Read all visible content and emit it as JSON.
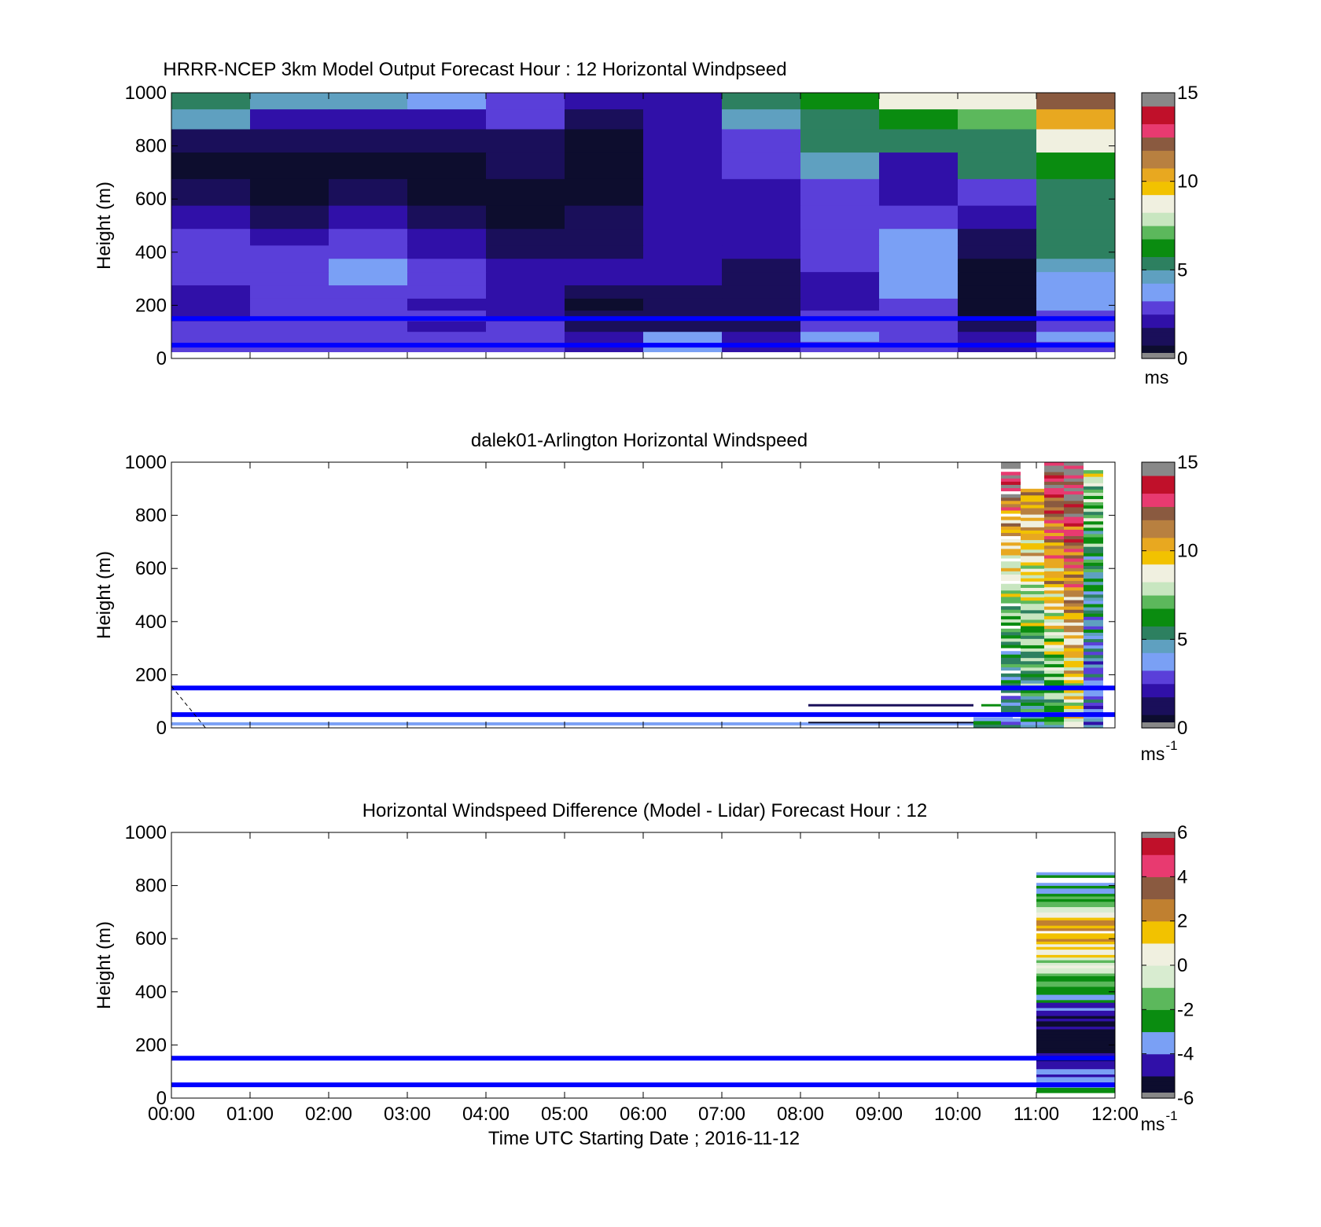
{
  "figure": {
    "xlabel": "Time UTC  Starting Date ; 2016-11-12",
    "x_ticks": [
      "00:00",
      "01:00",
      "02:00",
      "03:00",
      "04:00",
      "05:00",
      "06:00",
      "07:00",
      "08:00",
      "09:00",
      "10:00",
      "11:00",
      "12:00"
    ]
  },
  "colors": {
    "guide_lines": "#0000ff",
    "windspeed_colormap": [
      "#0d0d2e",
      "#1a0f5a",
      "#3010a8",
      "#5a3fd9",
      "#7aa0f5",
      "#5fa0c0",
      "#2d8060",
      "#0a8c10",
      "#5cb85c",
      "#c8e6c0",
      "#f0f0e0",
      "#f2c200",
      "#e8a820",
      "#b88040",
      "#8a5a40",
      "#e83a70",
      "#c0102a",
      "#888888"
    ],
    "difference_colormap": [
      "#0d0d2e",
      "#3010a8",
      "#7aa0f5",
      "#0a8c10",
      "#5cb85c",
      "#d8ecd0",
      "#f0f0e0",
      "#f2c200",
      "#c08030",
      "#8a5a40",
      "#e83a70",
      "#c0102a"
    ]
  },
  "chart_data": [
    {
      "type": "heatmap",
      "title": "HRRR-NCEP 3km Model Output   Forecast Hour : 12 Horizontal Windpseed",
      "xlabel": "",
      "ylabel": "Height (m)",
      "xlim": [
        0,
        12
      ],
      "ylim": [
        0,
        1000
      ],
      "y_ticks": [
        "0",
        "200",
        "400",
        "600",
        "800",
        "1000"
      ],
      "colorbar": {
        "min": 0,
        "max": 15,
        "ticks": [
          "0",
          "5",
          "10",
          "15"
        ],
        "unit": "ms",
        "unit_sup": ""
      },
      "guide_lines_height_m": [
        150,
        50
      ],
      "x": [
        0,
        1,
        2,
        3,
        4,
        5,
        6,
        7,
        8,
        9,
        10,
        11
      ],
      "heights_m": [
        975,
        900,
        825,
        725,
        625,
        525,
        450,
        400,
        350,
        300,
        250,
        200,
        160,
        120,
        80,
        45
      ],
      "values": [
        [
          5.5,
          4.5,
          4.2,
          3.8,
          3.2,
          2.3,
          2.0,
          5.2,
          6.5,
          9.0,
          9.0,
          12.0
        ],
        [
          4.5,
          2.0,
          2.2,
          2.2,
          2.5,
          1.2,
          2.3,
          4.5,
          5.3,
          6.0,
          7.0,
          10.0
        ],
        [
          1.5,
          1.0,
          1.0,
          1.0,
          1.5,
          0.3,
          2.0,
          2.5,
          5.0,
          5.2,
          5.8,
          9.0
        ],
        [
          0.2,
          0.1,
          0.3,
          0.3,
          1.0,
          0.3,
          2.0,
          2.5,
          4.2,
          1.8,
          5.4,
          6.5
        ],
        [
          1.2,
          0.8,
          1.0,
          0.6,
          0.3,
          0.8,
          2.0,
          2.0,
          2.6,
          1.8,
          3.0,
          5.8
        ],
        [
          2.2,
          1.5,
          2.0,
          1.5,
          0.6,
          1.3,
          2.0,
          2.2,
          2.8,
          2.6,
          2.0,
          5.2
        ],
        [
          2.5,
          2.3,
          2.8,
          1.8,
          1.0,
          1.4,
          2.1,
          2.0,
          2.9,
          3.6,
          1.0,
          5.0
        ],
        [
          3.0,
          2.6,
          3.2,
          2.4,
          1.6,
          1.5,
          1.8,
          1.8,
          2.8,
          3.9,
          1.3,
          5.0
        ],
        [
          3.0,
          3.0,
          3.6,
          3.0,
          2.1,
          1.7,
          1.8,
          1.6,
          2.6,
          3.9,
          0.8,
          4.5
        ],
        [
          2.6,
          3.1,
          3.7,
          3.2,
          2.4,
          1.9,
          1.8,
          1.5,
          2.3,
          3.9,
          0.4,
          3.9
        ],
        [
          2.2,
          3.0,
          3.2,
          2.7,
          2.0,
          1.5,
          1.6,
          1.3,
          2.1,
          3.7,
          0.3,
          3.7
        ],
        [
          2.0,
          2.6,
          2.9,
          2.4,
          1.7,
          0.8,
          1.4,
          1.2,
          2.2,
          3.3,
          0.3,
          3.9
        ],
        [
          2.4,
          2.7,
          2.9,
          2.6,
          2.2,
          1.2,
          1.5,
          1.2,
          2.5,
          3.1,
          0.7,
          3.1
        ],
        [
          2.6,
          2.7,
          3.0,
          2.3,
          2.7,
          1.6,
          1.6,
          1.3,
          2.8,
          3.0,
          1.2,
          3.0
        ],
        [
          2.8,
          3.0,
          3.3,
          2.6,
          3.1,
          2.0,
          3.6,
          1.7,
          3.6,
          3.3,
          1.8,
          3.4
        ],
        [
          2.9,
          3.2,
          3.3,
          2.8,
          3.2,
          2.3,
          3.4,
          2.3,
          3.3,
          3.1,
          2.4,
          3.0
        ]
      ]
    },
    {
      "type": "heatmap",
      "title": "dalek01-Arlington  Horizontal Windspeed",
      "xlabel": "",
      "ylabel": "Height (m)",
      "xlim": [
        0,
        12
      ],
      "ylim": [
        0,
        1000
      ],
      "y_ticks": [
        "0",
        "200",
        "400",
        "600",
        "800",
        "1000"
      ],
      "colorbar": {
        "min": 0,
        "max": 15,
        "ticks": [
          "0",
          "5",
          "10",
          "15"
        ],
        "unit": "ms",
        "unit_sup": "-1"
      },
      "guide_lines_height_m": [
        150,
        50
      ],
      "x": [
        10.7,
        11.0,
        11.2,
        11.5,
        11.75,
        12.0
      ],
      "columns": [
        {
          "x_start": 10.2,
          "x_end": 10.7,
          "bottom_m": 0,
          "top_m": 40,
          "base_value": 4.5,
          "top_value": 5.0
        },
        {
          "x_start": 10.55,
          "x_end": 10.8,
          "bottom_m": 0,
          "top_m": 1000,
          "base_value": 4.0,
          "top_value": 13.0
        },
        {
          "x_start": 10.8,
          "x_end": 11.1,
          "bottom_m": 0,
          "top_m": 900,
          "base_value": 5.5,
          "top_value": 11.0
        },
        {
          "x_start": 11.1,
          "x_end": 11.35,
          "bottom_m": 0,
          "top_m": 1000,
          "base_value": 6.5,
          "top_value": 14.0
        },
        {
          "x_start": 11.35,
          "x_end": 11.6,
          "bottom_m": 0,
          "top_m": 1000,
          "base_value": 8.5,
          "top_value": 14.5
        },
        {
          "x_start": 11.6,
          "x_end": 11.85,
          "bottom_m": 0,
          "top_m": 970,
          "base_value": 3.0,
          "top_value": 8.0
        }
      ]
    },
    {
      "type": "heatmap",
      "title": "Horizontal Windspeed Difference (Model - Lidar) Forecast Hour : 12",
      "xlabel": "Time UTC  Starting Date ; 2016-11-12",
      "ylabel": "Height (m)",
      "xlim": [
        0,
        12
      ],
      "ylim": [
        0,
        1000
      ],
      "y_ticks": [
        "0",
        "200",
        "400",
        "600",
        "800",
        "1000"
      ],
      "colorbar": {
        "min": -6,
        "max": 6,
        "ticks": [
          "-6",
          "-4",
          "-2",
          "0",
          "2",
          "4",
          "6"
        ],
        "unit": "ms",
        "unit_sup": "-1"
      },
      "guide_lines_height_m": [
        150,
        50
      ],
      "x": [
        11
      ],
      "columns": [
        {
          "x_start": 11.0,
          "x_end": 12.0,
          "bottom_m": 20,
          "top_m": 850
        }
      ],
      "profile": [
        {
          "height_m": 840,
          "value": -2.5
        },
        {
          "height_m": 780,
          "value": -3.0
        },
        {
          "height_m": 750,
          "value": -2.0
        },
        {
          "height_m": 700,
          "value": 0.2
        },
        {
          "height_m": 660,
          "value": 2.2
        },
        {
          "height_m": 600,
          "value": 1.6
        },
        {
          "height_m": 560,
          "value": 0.8
        },
        {
          "height_m": 500,
          "value": -0.5
        },
        {
          "height_m": 440,
          "value": -2.2
        },
        {
          "height_m": 380,
          "value": -3.0
        },
        {
          "height_m": 340,
          "value": -4.3
        },
        {
          "height_m": 280,
          "value": -5.5
        },
        {
          "height_m": 200,
          "value": -5.8
        },
        {
          "height_m": 150,
          "value": -5.0
        },
        {
          "height_m": 110,
          "value": -4.1
        },
        {
          "height_m": 70,
          "value": -3.8
        },
        {
          "height_m": 35,
          "value": -3.0
        }
      ]
    }
  ]
}
